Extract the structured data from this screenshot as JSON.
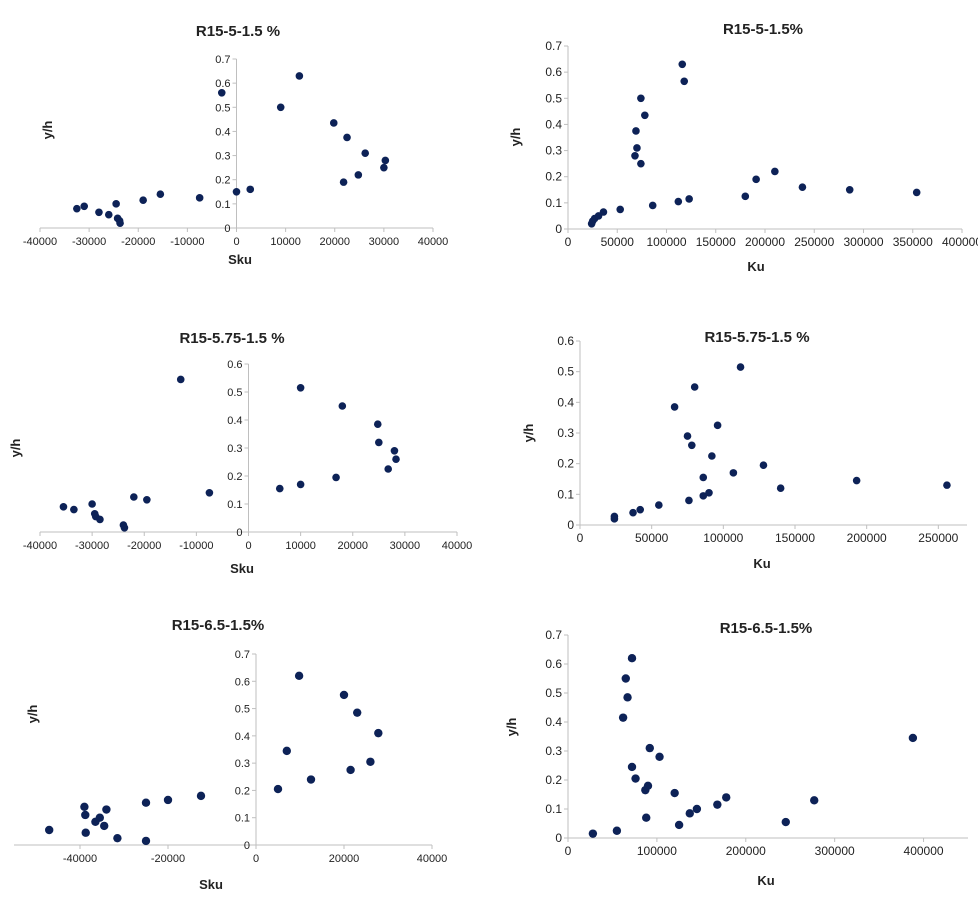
{
  "colors": {
    "marker": "#0d2257",
    "axis": "#bfbfbf",
    "text": "#222222"
  },
  "chart_data": [
    {
      "type": "scatter",
      "title": "R15-5-1.5 %",
      "xlabel": "Sku",
      "ylabel": "y/h",
      "xlim": [
        -40000,
        40000
      ],
      "ylim": [
        0,
        0.7
      ],
      "xticks": [
        -40000,
        -30000,
        -20000,
        -10000,
        0,
        10000,
        20000,
        30000,
        40000
      ],
      "xtick_labels": [
        "-40000",
        "-30000",
        "-20000",
        "-10000",
        "0",
        "10000",
        "20000",
        "30000",
        "40000"
      ],
      "yticks": [
        0,
        0.1,
        0.2,
        0.3,
        0.4,
        0.5,
        0.6,
        0.7
      ],
      "ytick_labels": [
        "0",
        "0.1",
        "0.2",
        "0.3",
        "0.4",
        "0.5",
        "0.6",
        "0.7"
      ],
      "points": [
        [
          -32500,
          0.08
        ],
        [
          -31000,
          0.09
        ],
        [
          -28000,
          0.065
        ],
        [
          -26000,
          0.055
        ],
        [
          -24500,
          0.1
        ],
        [
          -24200,
          0.04
        ],
        [
          -23800,
          0.03
        ],
        [
          -23700,
          0.02
        ],
        [
          -19000,
          0.115
        ],
        [
          -15500,
          0.14
        ],
        [
          -7500,
          0.125
        ],
        [
          -3000,
          0.56
        ],
        [
          0,
          0.15
        ],
        [
          2800,
          0.16
        ],
        [
          9000,
          0.5
        ],
        [
          12800,
          0.63
        ],
        [
          19800,
          0.435
        ],
        [
          21800,
          0.19
        ],
        [
          22500,
          0.375
        ],
        [
          24800,
          0.22
        ],
        [
          26200,
          0.31
        ],
        [
          30000,
          0.25
        ],
        [
          30300,
          0.28
        ]
      ]
    },
    {
      "type": "scatter",
      "title": "R15-5-1.5%",
      "xlabel": "Ku",
      "ylabel": "y/h",
      "xlim": [
        0,
        400000
      ],
      "ylim": [
        0,
        0.7
      ],
      "xticks": [
        0,
        50000,
        100000,
        150000,
        200000,
        250000,
        300000,
        350000,
        400000
      ],
      "xtick_labels": [
        "0",
        "50000",
        "100000",
        "150000",
        "200000",
        "250000",
        "300000",
        "350000",
        "400000"
      ],
      "yticks": [
        0,
        0.1,
        0.2,
        0.3,
        0.4,
        0.5,
        0.6,
        0.7
      ],
      "ytick_labels": [
        "0",
        "0.1",
        "0.2",
        "0.3",
        "0.4",
        "0.5",
        "0.6",
        "0.7"
      ],
      "points": [
        [
          24000,
          0.02
        ],
        [
          25000,
          0.03
        ],
        [
          27000,
          0.04
        ],
        [
          31000,
          0.05
        ],
        [
          36000,
          0.065
        ],
        [
          53000,
          0.075
        ],
        [
          68000,
          0.28
        ],
        [
          69000,
          0.375
        ],
        [
          70000,
          0.31
        ],
        [
          74000,
          0.25
        ],
        [
          74000,
          0.5
        ],
        [
          78000,
          0.435
        ],
        [
          86000,
          0.09
        ],
        [
          112000,
          0.105
        ],
        [
          116000,
          0.63
        ],
        [
          118000,
          0.565
        ],
        [
          123000,
          0.115
        ],
        [
          180000,
          0.125
        ],
        [
          191000,
          0.19
        ],
        [
          210000,
          0.22
        ],
        [
          238000,
          0.16
        ],
        [
          286000,
          0.15
        ],
        [
          354000,
          0.14
        ]
      ]
    },
    {
      "type": "scatter",
      "title": "R15-5.75-1.5 %",
      "xlabel": "Sku",
      "ylabel": "y/h",
      "xlim": [
        -40000,
        40000
      ],
      "ylim": [
        0,
        0.6
      ],
      "xticks": [
        -40000,
        -30000,
        -20000,
        -10000,
        0,
        10000,
        20000,
        30000,
        40000
      ],
      "xtick_labels": [
        "-40000",
        "-30000",
        "-20000",
        "-10000",
        "0",
        "10000",
        "20000",
        "30000",
        "40000"
      ],
      "yticks": [
        0,
        0.1,
        0.2,
        0.3,
        0.4,
        0.5,
        0.6
      ],
      "ytick_labels": [
        "0",
        "0.1",
        "0.2",
        "0.3",
        "0.4",
        "0.5",
        "0.6"
      ],
      "points": [
        [
          -35500,
          0.09
        ],
        [
          -33500,
          0.08
        ],
        [
          -30000,
          0.1
        ],
        [
          -29500,
          0.065
        ],
        [
          -29300,
          0.055
        ],
        [
          -28500,
          0.045
        ],
        [
          -24000,
          0.025
        ],
        [
          -23800,
          0.015
        ],
        [
          -22000,
          0.125
        ],
        [
          -19500,
          0.115
        ],
        [
          -13000,
          0.545
        ],
        [
          -7500,
          0.14
        ],
        [
          6000,
          0.155
        ],
        [
          10000,
          0.515
        ],
        [
          10000,
          0.17
        ],
        [
          16800,
          0.195
        ],
        [
          18000,
          0.45
        ],
        [
          24800,
          0.385
        ],
        [
          25000,
          0.32
        ],
        [
          26800,
          0.225
        ],
        [
          28000,
          0.29
        ],
        [
          28300,
          0.26
        ]
      ]
    },
    {
      "type": "scatter",
      "title": "R15-5.75-1.5 %",
      "xlabel": "Ku",
      "ylabel": "y/h",
      "xlim": [
        0,
        270000
      ],
      "ylim": [
        0,
        0.6
      ],
      "xticks": [
        0,
        50000,
        100000,
        150000,
        200000,
        250000
      ],
      "xtick_labels": [
        "0",
        "50000",
        "100000",
        "150000",
        "200000",
        "250000"
      ],
      "yticks": [
        0,
        0.1,
        0.2,
        0.3,
        0.4,
        0.5,
        0.6
      ],
      "ytick_labels": [
        "0",
        "0.1",
        "0.2",
        "0.3",
        "0.4",
        "0.5",
        "0.6"
      ],
      "points": [
        [
          24000,
          0.02
        ],
        [
          24000,
          0.028
        ],
        [
          37000,
          0.04
        ],
        [
          42000,
          0.05
        ],
        [
          55000,
          0.065
        ],
        [
          66000,
          0.385
        ],
        [
          75000,
          0.29
        ],
        [
          76000,
          0.08
        ],
        [
          78000,
          0.26
        ],
        [
          80000,
          0.45
        ],
        [
          86000,
          0.155
        ],
        [
          86000,
          0.095
        ],
        [
          90000,
          0.105
        ],
        [
          92000,
          0.225
        ],
        [
          96000,
          0.325
        ],
        [
          107000,
          0.17
        ],
        [
          112000,
          0.515
        ],
        [
          128000,
          0.195
        ],
        [
          140000,
          0.12
        ],
        [
          193000,
          0.145
        ],
        [
          256000,
          0.13
        ]
      ]
    },
    {
      "type": "scatter",
      "title": "R15-6.5-1.5%",
      "xlabel": "Sku",
      "ylabel": "y/h",
      "xlim": [
        -55000,
        40000
      ],
      "ylim": [
        0,
        0.7
      ],
      "xticks": [
        -40000,
        -20000,
        0,
        20000,
        40000
      ],
      "xtick_labels": [
        "-40000",
        "-20000",
        "0",
        "20000",
        "40000"
      ],
      "yticks": [
        0,
        0.1,
        0.2,
        0.3,
        0.4,
        0.5,
        0.6,
        0.7
      ],
      "ytick_labels": [
        "0",
        "0.1",
        "0.2",
        "0.3",
        "0.4",
        "0.5",
        "0.6",
        "0.7"
      ],
      "points": [
        [
          -47000,
          0.055
        ],
        [
          -39000,
          0.14
        ],
        [
          -38800,
          0.11
        ],
        [
          -38700,
          0.045
        ],
        [
          -36500,
          0.085
        ],
        [
          -35500,
          0.1
        ],
        [
          -34500,
          0.07
        ],
        [
          -34000,
          0.13
        ],
        [
          -31500,
          0.025
        ],
        [
          -25000,
          0.155
        ],
        [
          -25000,
          0.015
        ],
        [
          -20000,
          0.165
        ],
        [
          -12500,
          0.18
        ],
        [
          5000,
          0.205
        ],
        [
          7000,
          0.345
        ],
        [
          9800,
          0.62
        ],
        [
          12500,
          0.24
        ],
        [
          20000,
          0.55
        ],
        [
          21500,
          0.275
        ],
        [
          23000,
          0.485
        ],
        [
          26000,
          0.305
        ],
        [
          27800,
          0.41
        ]
      ]
    },
    {
      "type": "scatter",
      "title": "R15-6.5-1.5%",
      "xlabel": "Ku",
      "ylabel": "y/h",
      "xlim": [
        0,
        450000
      ],
      "ylim": [
        0,
        0.7
      ],
      "xticks": [
        0,
        100000,
        200000,
        300000,
        400000
      ],
      "xtick_labels": [
        "0",
        "100000",
        "200000",
        "300000",
        "400000"
      ],
      "yticks": [
        0,
        0.1,
        0.2,
        0.3,
        0.4,
        0.5,
        0.6,
        0.7
      ],
      "ytick_labels": [
        "0",
        "0.1",
        "0.2",
        "0.3",
        "0.4",
        "0.5",
        "0.6",
        "0.7"
      ],
      "points": [
        [
          28000,
          0.015
        ],
        [
          55000,
          0.025
        ],
        [
          62000,
          0.415
        ],
        [
          65000,
          0.55
        ],
        [
          67000,
          0.485
        ],
        [
          72000,
          0.62
        ],
        [
          72000,
          0.245
        ],
        [
          76000,
          0.205
        ],
        [
          87000,
          0.165
        ],
        [
          88000,
          0.07
        ],
        [
          90000,
          0.18
        ],
        [
          92000,
          0.31
        ],
        [
          103000,
          0.28
        ],
        [
          120000,
          0.155
        ],
        [
          125000,
          0.045
        ],
        [
          137000,
          0.085
        ],
        [
          145000,
          0.1
        ],
        [
          168000,
          0.115
        ],
        [
          178000,
          0.14
        ],
        [
          245000,
          0.055
        ],
        [
          277000,
          0.13
        ],
        [
          388000,
          0.345
        ]
      ]
    }
  ]
}
